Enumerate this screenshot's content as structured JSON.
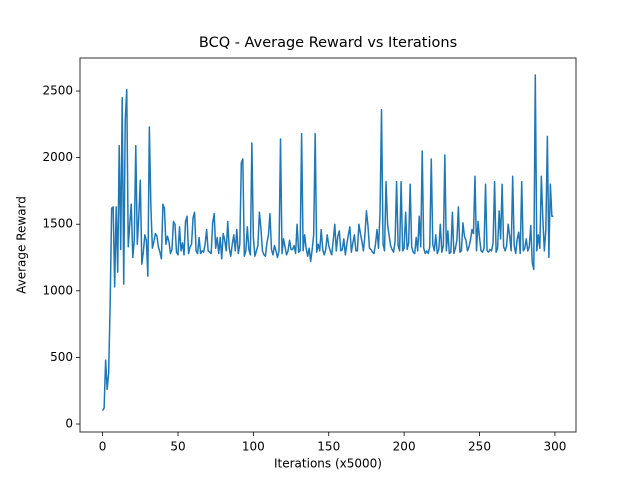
{
  "chart_data": {
    "type": "line",
    "title": "BCQ - Average Reward vs Iterations",
    "x_label": "Iterations (x5000)",
    "y_label": "Average Reward",
    "color": "#1f77b4",
    "xlim": [
      -15,
      314
    ],
    "ylim": [
      -60,
      2748
    ],
    "xticks": [
      0,
      50,
      100,
      150,
      200,
      250,
      300
    ],
    "yticks": [
      0,
      500,
      1000,
      1500,
      2000,
      2500
    ],
    "x": [
      0,
      1,
      2,
      3,
      4,
      5,
      6,
      7,
      8,
      9,
      10,
      11,
      12,
      13,
      14,
      15,
      16,
      17,
      18,
      19,
      20,
      21,
      22,
      23,
      24,
      25,
      26,
      27,
      28,
      29,
      30,
      31,
      32,
      33,
      34,
      35,
      36,
      37,
      38,
      39,
      40,
      41,
      42,
      43,
      44,
      45,
      46,
      47,
      48,
      49,
      50,
      51,
      52,
      53,
      54,
      55,
      56,
      57,
      58,
      59,
      60,
      61,
      62,
      63,
      64,
      65,
      66,
      67,
      68,
      69,
      70,
      71,
      72,
      73,
      74,
      75,
      76,
      77,
      78,
      79,
      80,
      81,
      82,
      83,
      84,
      85,
      86,
      87,
      88,
      89,
      90,
      91,
      92,
      93,
      94,
      95,
      96,
      97,
      98,
      99,
      100,
      101,
      102,
      103,
      104,
      105,
      106,
      107,
      108,
      109,
      110,
      111,
      112,
      113,
      114,
      115,
      116,
      117,
      118,
      119,
      120,
      121,
      122,
      123,
      124,
      125,
      126,
      127,
      128,
      129,
      130,
      131,
      132,
      133,
      134,
      135,
      136,
      137,
      138,
      139,
      140,
      141,
      142,
      143,
      144,
      145,
      146,
      147,
      148,
      149,
      150,
      151,
      152,
      153,
      154,
      155,
      156,
      157,
      158,
      159,
      160,
      161,
      162,
      163,
      164,
      165,
      166,
      167,
      168,
      169,
      170,
      171,
      172,
      173,
      174,
      175,
      176,
      177,
      178,
      179,
      180,
      181,
      182,
      183,
      184,
      185,
      186,
      187,
      188,
      189,
      190,
      191,
      192,
      193,
      194,
      195,
      196,
      197,
      198,
      199,
      200,
      201,
      202,
      203,
      204,
      205,
      206,
      207,
      208,
      209,
      210,
      211,
      212,
      213,
      214,
      215,
      216,
      217,
      218,
      219,
      220,
      221,
      222,
      223,
      224,
      225,
      226,
      227,
      228,
      229,
      230,
      231,
      232,
      233,
      234,
      235,
      236,
      237,
      238,
      239,
      240,
      241,
      242,
      243,
      244,
      245,
      246,
      247,
      248,
      249,
      250,
      251,
      252,
      253,
      254,
      255,
      256,
      257,
      258,
      259,
      260,
      261,
      262,
      263,
      264,
      265,
      266,
      267,
      268,
      269,
      270,
      271,
      272,
      273,
      274,
      275,
      276,
      277,
      278,
      279,
      280,
      281,
      282,
      283,
      284,
      285,
      286,
      287,
      288,
      289,
      290,
      291,
      292,
      293,
      294,
      295,
      296,
      297,
      298,
      299
    ],
    "values": [
      100,
      120,
      480,
      260,
      380,
      900,
      1620,
      1630,
      1030,
      1630,
      1140,
      2090,
      1310,
      2450,
      1050,
      2280,
      2510,
      1330,
      1500,
      1650,
      1250,
      1380,
      2090,
      1350,
      1560,
      1830,
      1200,
      1290,
      1420,
      1380,
      1110,
      2230,
      1640,
      1320,
      1370,
      1430,
      1410,
      1330,
      1290,
      1240,
      1650,
      1620,
      1350,
      1410,
      1370,
      1280,
      1310,
      1520,
      1500,
      1290,
      1270,
      1480,
      1300,
      1360,
      1270,
      1520,
      1560,
      1280,
      1330,
      1350,
      1550,
      1590,
      1300,
      1280,
      1400,
      1280,
      1300,
      1290,
      1350,
      1460,
      1300,
      1290,
      1280,
      1510,
      1580,
      1320,
      1400,
      1280,
      1400,
      1240,
      1430,
      1380,
      1300,
      1520,
      1320,
      1260,
      1350,
      1420,
      1300,
      1460,
      1280,
      1350,
      1960,
      1990,
      1260,
      1300,
      1480,
      1310,
      1270,
      2110,
      1400,
      1260,
      1300,
      1340,
      1590,
      1470,
      1300,
      1270,
      1260,
      1360,
      1420,
      1580,
      1310,
      1270,
      1340,
      1300,
      1250,
      1300,
      2140,
      1280,
      1390,
      1330,
      1270,
      1300,
      1380,
      1310,
      1310,
      1340,
      1280,
      1500,
      1290,
      1300,
      2180,
      1300,
      1420,
      1320,
      1260,
      1320,
      1220,
      1310,
      1420,
      2180,
      1290,
      1350,
      1300,
      1460,
      1310,
      1270,
      1310,
      1420,
      1340,
      1300,
      1270,
      1380,
      1500,
      1300,
      1410,
      1450,
      1300,
      1310,
      1390,
      1270,
      1350,
      1420,
      1480,
      1290,
      1360,
      1420,
      1300,
      1300,
      1500,
      1430,
      1370,
      1300,
      1420,
      1600,
      1490,
      1320,
      1310,
      1290,
      1280,
      1350,
      1460,
      1320,
      1580,
      2360,
      1350,
      1300,
      1820,
      1500,
      1420,
      1340,
      1310,
      1290,
      1370,
      1820,
      1340,
      1300,
      1820,
      1300,
      1320,
      1590,
      1310,
      1360,
      1800,
      1330,
      1290,
      1280,
      1400,
      1300,
      1560,
      1330,
      2050,
      1320,
      1280,
      1300,
      1280,
      1330,
      1990,
      1350,
      1300,
      1420,
      1280,
      1310,
      1500,
      1290,
      1340,
      2020,
      1300,
      1450,
      1280,
      1290,
      1590,
      1280,
      1320,
      1380,
      1630,
      1290,
      1300,
      1510,
      1410,
      1380,
      1300,
      1330,
      1380,
      1460,
      1430,
      1860,
      1300,
      1520,
      1400,
      1300,
      1290,
      1320,
      1800,
      1300,
      1290,
      1310,
      1300,
      1360,
      1820,
      1290,
      1320,
      1600,
      1390,
      1800,
      1330,
      1300,
      1340,
      1500,
      1410,
      1300,
      1860,
      1340,
      1280,
      1390,
      1440,
      1280,
      1820,
      1300,
      1320,
      1390,
      1300,
      1330,
      1490,
      1210,
      1160,
      2620,
      1300,
      1420,
      1320,
      1860,
      1540,
      1300,
      1460,
      2160,
      1250,
      1800,
      1560,
      1560
    ]
  }
}
